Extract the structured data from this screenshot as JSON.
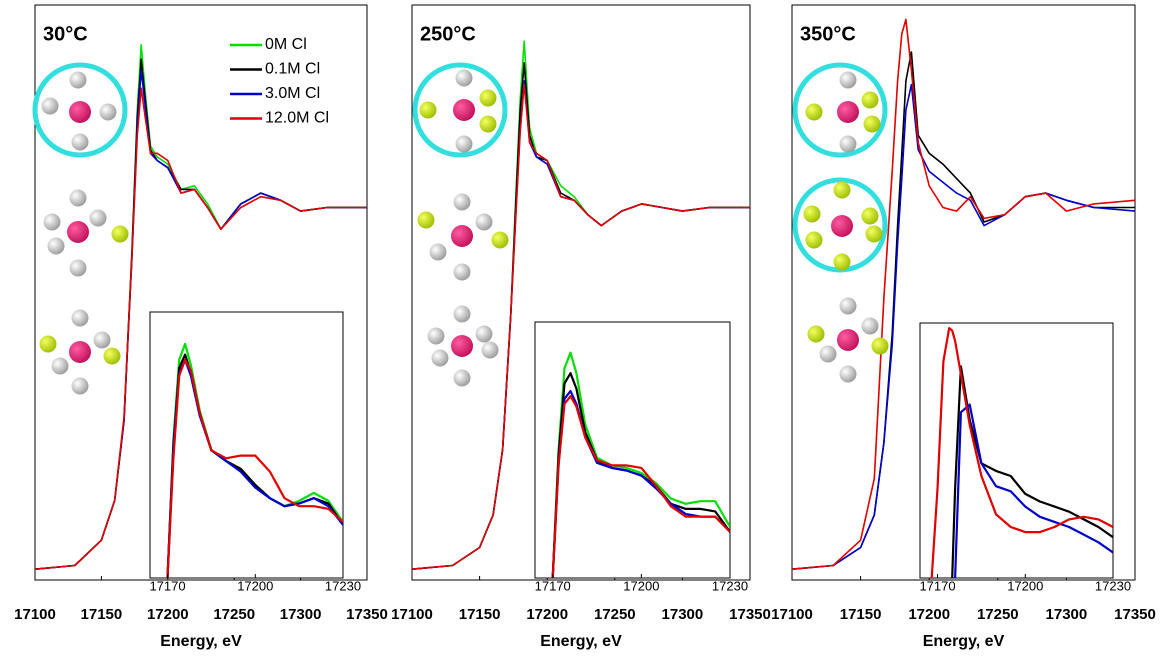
{
  "chart_data": [
    {
      "type": "line",
      "title": "30°C",
      "x_label": "Energy, eV",
      "xlim": [
        17100,
        17350
      ],
      "ylim": [
        -0.03,
        1.56
      ],
      "xticks": [
        17100,
        17150,
        17200,
        17250,
        17300,
        17350
      ],
      "x": [
        17100,
        17130,
        17150,
        17160,
        17167,
        17173,
        17177,
        17180,
        17183,
        17187,
        17192,
        17200,
        17210,
        17220,
        17230,
        17240,
        17255,
        17270,
        17285,
        17300,
        17320,
        17350
      ],
      "series": [
        {
          "name": "0M Cl",
          "color": "#00e000",
          "values": [
            0,
            0.01,
            0.08,
            0.19,
            0.41,
            0.88,
            1.27,
            1.45,
            1.32,
            1.17,
            1.14,
            1.12,
            1.05,
            1.06,
            1.01,
            0.94,
            1.01,
            1.04,
            1.02,
            0.99,
            1.0,
            1.0
          ]
        },
        {
          "name": "0.1M Cl",
          "color": "#000000",
          "values": [
            0,
            0.01,
            0.08,
            0.19,
            0.41,
            0.87,
            1.25,
            1.41,
            1.3,
            1.16,
            1.13,
            1.11,
            1.05,
            1.05,
            1.0,
            0.94,
            1.01,
            1.04,
            1.02,
            0.99,
            1.0,
            1.0
          ]
        },
        {
          "name": "3.0M Cl",
          "color": "#0000cc",
          "values": [
            0,
            0.01,
            0.08,
            0.19,
            0.41,
            0.86,
            1.23,
            1.38,
            1.28,
            1.15,
            1.13,
            1.11,
            1.04,
            1.05,
            1.0,
            0.94,
            1.01,
            1.04,
            1.02,
            0.99,
            1.0,
            1.0
          ]
        },
        {
          "name": "12.0M Cl",
          "color": "#e00000",
          "values": [
            0,
            0.01,
            0.08,
            0.19,
            0.42,
            0.86,
            1.2,
            1.33,
            1.25,
            1.15,
            1.15,
            1.13,
            1.04,
            1.05,
            1.0,
            0.94,
            1.0,
            1.03,
            1.02,
            0.99,
            1.0,
            1.0
          ]
        }
      ],
      "inset": {
        "xlim": [
          17164,
          17230
        ],
        "ylim": [
          0,
          1
        ],
        "xticks": [
          17170,
          17200,
          17230
        ],
        "x": [
          17170,
          17172,
          17174,
          17176,
          17178,
          17181,
          17185,
          17190,
          17195,
          17200,
          17205,
          17210,
          17215,
          17220,
          17225,
          17230
        ],
        "series": [
          {
            "color": "#00e000",
            "values": [
              0,
              0.52,
              0.82,
              0.88,
              0.8,
              0.63,
              0.48,
              0.44,
              0.41,
              0.35,
              0.3,
              0.27,
              0.29,
              0.32,
              0.29,
              0.21
            ]
          },
          {
            "color": "#000000",
            "values": [
              0,
              0.5,
              0.79,
              0.84,
              0.77,
              0.62,
              0.48,
              0.44,
              0.41,
              0.35,
              0.3,
              0.27,
              0.28,
              0.3,
              0.28,
              0.2
            ]
          },
          {
            "color": "#0000cc",
            "values": [
              0,
              0.49,
              0.77,
              0.82,
              0.76,
              0.61,
              0.48,
              0.44,
              0.4,
              0.34,
              0.3,
              0.27,
              0.28,
              0.3,
              0.27,
              0.2
            ]
          },
          {
            "color": "#e00000",
            "values": [
              0,
              0.45,
              0.76,
              0.82,
              0.78,
              0.62,
              0.48,
              0.45,
              0.46,
              0.46,
              0.4,
              0.3,
              0.27,
              0.27,
              0.26,
              0.21
            ]
          }
        ]
      }
    },
    {
      "type": "line",
      "title": "250°C",
      "x_label": "Energy, eV",
      "xlim": [
        17100,
        17350
      ],
      "ylim": [
        -0.03,
        1.56
      ],
      "xticks": [
        17100,
        17150,
        17200,
        17250,
        17300,
        17350
      ],
      "x": [
        17100,
        17130,
        17150,
        17160,
        17167,
        17173,
        17177,
        17180,
        17183,
        17187,
        17192,
        17200,
        17210,
        17220,
        17230,
        17240,
        17255,
        17270,
        17285,
        17300,
        17320,
        17350
      ],
      "series": [
        {
          "color": "#00e000",
          "values": [
            0,
            0.01,
            0.06,
            0.15,
            0.33,
            0.7,
            1.05,
            1.3,
            1.46,
            1.22,
            1.15,
            1.13,
            1.06,
            1.03,
            0.98,
            0.95,
            0.99,
            1.01,
            1.0,
            0.99,
            1.0,
            1.0
          ]
        },
        {
          "color": "#000000",
          "values": [
            0,
            0.01,
            0.06,
            0.15,
            0.33,
            0.7,
            1.03,
            1.27,
            1.4,
            1.2,
            1.14,
            1.13,
            1.04,
            1.02,
            0.98,
            0.95,
            0.99,
            1.01,
            1.0,
            0.99,
            1.0,
            1.0
          ]
        },
        {
          "color": "#0000cc",
          "values": [
            0,
            0.01,
            0.06,
            0.15,
            0.33,
            0.7,
            1.0,
            1.22,
            1.35,
            1.18,
            1.14,
            1.12,
            1.03,
            1.02,
            0.98,
            0.95,
            0.99,
            1.01,
            1.0,
            0.99,
            1.0,
            1.0
          ]
        },
        {
          "color": "#e00000",
          "values": [
            0,
            0.01,
            0.06,
            0.15,
            0.33,
            0.7,
            0.99,
            1.21,
            1.34,
            1.18,
            1.15,
            1.13,
            1.03,
            1.02,
            0.98,
            0.95,
            0.99,
            1.01,
            1.0,
            0.99,
            1.0,
            1.0
          ]
        }
      ],
      "inset": {
        "xlim": [
          17164,
          17230
        ],
        "ylim": [
          0,
          1
        ],
        "xticks": [
          17170,
          17200,
          17230
        ],
        "x": [
          17170,
          17172,
          17174,
          17176,
          17178,
          17181,
          17185,
          17190,
          17195,
          17200,
          17205,
          17210,
          17215,
          17220,
          17225,
          17230
        ],
        "series": [
          {
            "color": "#00e000",
            "values": [
              0,
              0.5,
              0.82,
              0.88,
              0.8,
              0.6,
              0.47,
              0.44,
              0.43,
              0.41,
              0.37,
              0.31,
              0.29,
              0.3,
              0.3,
              0.2
            ]
          },
          {
            "color": "#000000",
            "values": [
              0,
              0.48,
              0.76,
              0.8,
              0.74,
              0.57,
              0.46,
              0.43,
              0.42,
              0.4,
              0.36,
              0.29,
              0.27,
              0.27,
              0.26,
              0.18
            ]
          },
          {
            "color": "#0000cc",
            "values": [
              0,
              0.45,
              0.7,
              0.73,
              0.68,
              0.55,
              0.45,
              0.43,
              0.42,
              0.4,
              0.35,
              0.29,
              0.25,
              0.24,
              0.24,
              0.18
            ]
          },
          {
            "color": "#e00000",
            "values": [
              0,
              0.44,
              0.68,
              0.71,
              0.67,
              0.55,
              0.46,
              0.44,
              0.44,
              0.43,
              0.36,
              0.28,
              0.24,
              0.24,
              0.24,
              0.18
            ]
          }
        ]
      }
    },
    {
      "type": "line",
      "title": "350°C",
      "x_label": "Energy, eV",
      "xlim": [
        17100,
        17350
      ],
      "ylim": [
        -0.03,
        1.56
      ],
      "xticks": [
        17100,
        17150,
        17200,
        17250,
        17300,
        17350
      ],
      "x": [
        17100,
        17130,
        17150,
        17160,
        17167,
        17173,
        17177,
        17180,
        17183,
        17187,
        17192,
        17200,
        17210,
        17220,
        17230,
        17240,
        17255,
        17270,
        17285,
        17300,
        17320,
        17350
      ],
      "series": [
        {
          "color": "#000000",
          "values": [
            0,
            0.01,
            0.06,
            0.15,
            0.35,
            0.65,
            0.95,
            1.15,
            1.35,
            1.43,
            1.2,
            1.15,
            1.12,
            1.08,
            1.04,
            0.96,
            0.98,
            1.03,
            1.04,
            1.02,
            1.0,
            1.0
          ]
        },
        {
          "color": "#0000cc",
          "values": [
            0,
            0.01,
            0.06,
            0.15,
            0.35,
            0.62,
            0.9,
            1.08,
            1.27,
            1.34,
            1.16,
            1.1,
            1.07,
            1.04,
            1.02,
            0.95,
            0.98,
            1.03,
            1.04,
            1.02,
            1.0,
            0.99
          ]
        },
        {
          "color": "#e00000",
          "values": [
            0,
            0.01,
            0.08,
            0.25,
            0.75,
            1.1,
            1.35,
            1.48,
            1.52,
            1.38,
            1.18,
            1.06,
            1.0,
            0.99,
            1.03,
            0.97,
            0.98,
            1.03,
            1.04,
            0.99,
            1.01,
            1.02
          ]
        }
      ],
      "inset": {
        "xlim": [
          17164,
          17230
        ],
        "ylim": [
          0,
          1
        ],
        "xticks": [
          17170,
          17200,
          17230
        ],
        "x": [
          17168,
          17170,
          17172,
          17174,
          17175,
          17176,
          17178,
          17181,
          17185,
          17190,
          17195,
          17200,
          17205,
          17210,
          17215,
          17220,
          17225,
          17230
        ],
        "series": [
          {
            "color": "#000000",
            "values": [
              null,
              null,
              null,
              null,
              0,
              0.35,
              0.83,
              0.62,
              0.45,
              0.42,
              0.4,
              0.33,
              0.3,
              0.28,
              0.26,
              0.23,
              0.2,
              0.16
            ]
          },
          {
            "color": "#0000cc",
            "values": [
              null,
              null,
              null,
              null,
              null,
              0,
              0.65,
              0.68,
              0.45,
              0.36,
              0.34,
              0.28,
              0.24,
              0.22,
              0.2,
              0.17,
              0.14,
              0.1
            ]
          },
          {
            "color": "#e00000",
            "values": [
              0,
              0.35,
              0.85,
              0.98,
              0.97,
              0.93,
              0.8,
              0.6,
              0.4,
              0.25,
              0.2,
              0.18,
              0.18,
              0.2,
              0.23,
              0.24,
              0.23,
              0.2
            ]
          }
        ]
      }
    }
  ]
}
